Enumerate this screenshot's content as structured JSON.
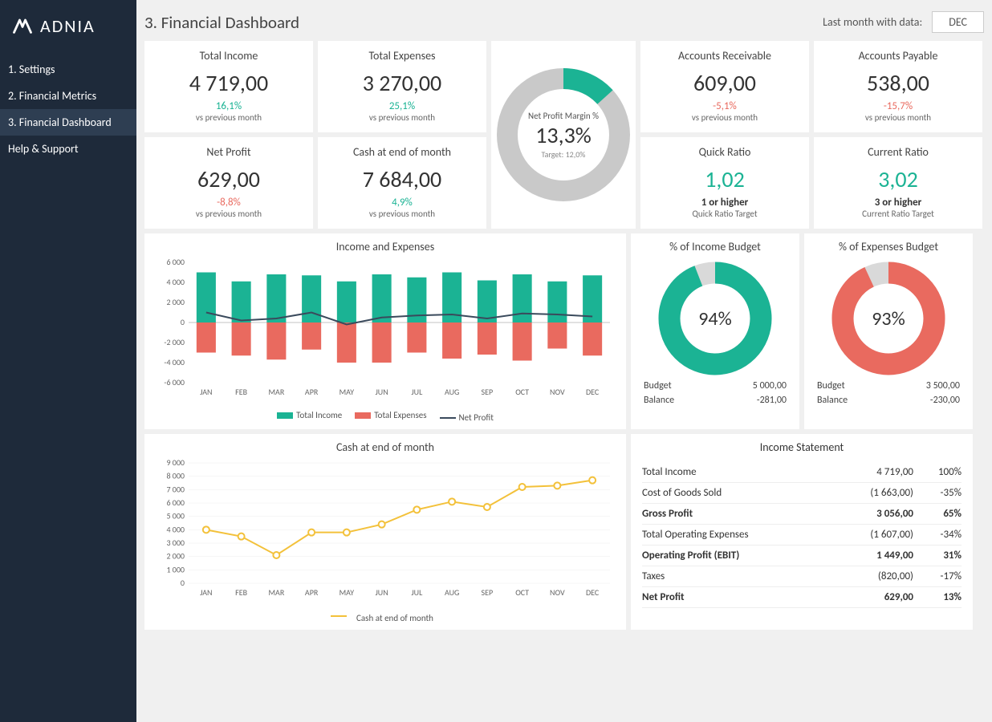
{
  "brand": "ADNIA",
  "page_title": "3. Financial Dashboard",
  "month_label": "Last month with data:",
  "month_value": "DEC",
  "nav": [
    {
      "label": "1. Settings",
      "active": false
    },
    {
      "label": "2. Financial Metrics",
      "active": false
    },
    {
      "label": "3. Financial Dashboard",
      "active": true
    },
    {
      "label": "Help & Support",
      "active": false
    }
  ],
  "colors": {
    "teal": "#1bb394",
    "red": "#e96a5f",
    "grey": "#c9c9c9",
    "navy": "#3a4a5c",
    "yellow": "#f3c13a",
    "bg": "#f0f0f0",
    "card": "#ffffff",
    "sidebar": "#1e2a3a"
  },
  "kpis_top": [
    {
      "title": "Total Income",
      "value": "4 719,00",
      "change": "16,1%",
      "change_cls": "pos",
      "sub": "vs previous month"
    },
    {
      "title": "Total Expenses",
      "value": "3 270,00",
      "change": "25,1%",
      "change_cls": "pos",
      "sub": "vs previous month"
    }
  ],
  "kpis_right_top": [
    {
      "title": "Accounts Receivable",
      "value": "609,00",
      "change": "-5,1%",
      "change_cls": "neg",
      "sub": "vs previous month"
    },
    {
      "title": "Accounts Payable",
      "value": "538,00",
      "change": "-15,7%",
      "change_cls": "neg",
      "sub": "vs previous month"
    }
  ],
  "kpis_bottom": [
    {
      "title": "Net Profit",
      "value": "629,00",
      "change": "-8,8%",
      "change_cls": "neg",
      "sub": "vs previous month"
    },
    {
      "title": "Cash at end of month",
      "value": "7 684,00",
      "change": "4,9%",
      "change_cls": "pos",
      "sub": "vs previous month"
    }
  ],
  "kpis_right_bottom": [
    {
      "title": "Quick Ratio",
      "value": "1,02",
      "value_cls": "pos",
      "change": "1 or higher",
      "change_cls": "",
      "sub": "Quick Ratio Target"
    },
    {
      "title": "Current Ratio",
      "value": "3,02",
      "value_cls": "pos",
      "change": "3 or higher",
      "change_cls": "",
      "sub": "Current Ratio Target"
    }
  ],
  "margin_donut": {
    "label": "Net Profit Margin %",
    "value": "13,3%",
    "target": "Target:  12,0%",
    "pct": 13.3,
    "fill": "#1bb394",
    "track": "#c9c9c9",
    "stroke_width": 26
  },
  "income_expense_chart": {
    "title": "Income and Expenses",
    "months": [
      "JAN",
      "FEB",
      "MAR",
      "APR",
      "MAY",
      "JUN",
      "JUL",
      "AUG",
      "SEP",
      "OCT",
      "NOV",
      "DEC"
    ],
    "income": [
      5000,
      4100,
      4800,
      4700,
      4100,
      4800,
      4500,
      5000,
      4200,
      4800,
      4100,
      4700
    ],
    "expenses": [
      3000,
      3300,
      3700,
      2700,
      4000,
      4000,
      3000,
      3600,
      3200,
      3800,
      2600,
      3300
    ],
    "net": [
      1000,
      200,
      400,
      1000,
      -200,
      500,
      700,
      800,
      400,
      900,
      800,
      600
    ],
    "ymin": -6000,
    "ymax": 6000,
    "ystep": 2000,
    "income_color": "#1bb394",
    "expense_color": "#e96a5f",
    "net_color": "#3a4a5c",
    "legend": [
      "Total Income",
      "Total Expenses",
      "Net Profit"
    ]
  },
  "budget_income": {
    "title": "% of Income Budget",
    "pct": 94,
    "color": "#1bb394",
    "track": "#d9d9d9",
    "budget_label": "Budget",
    "budget_val": "5 000,00",
    "balance_label": "Balance",
    "balance_val": "-281,00"
  },
  "budget_expense": {
    "title": "% of Expenses Budget",
    "pct": 93,
    "color": "#e96a5f",
    "track": "#d9d9d9",
    "budget_label": "Budget",
    "budget_val": "3 500,00",
    "balance_label": "Balance",
    "balance_val": "-230,00"
  },
  "cash_chart": {
    "title": "Cash at end of month",
    "months": [
      "JAN",
      "FEB",
      "MAR",
      "APR",
      "MAY",
      "JUN",
      "JUL",
      "AUG",
      "SEP",
      "OCT",
      "NOV",
      "DEC"
    ],
    "values": [
      4000,
      3500,
      2100,
      3800,
      3800,
      4400,
      5500,
      6100,
      5700,
      7200,
      7300,
      7700
    ],
    "ymin": 0,
    "ymax": 9000,
    "ystep": 1000,
    "line_color": "#f3c13a",
    "legend": "Cash at end of month"
  },
  "income_statement": {
    "title": "Income Statement",
    "rows": [
      {
        "label": "Total Income",
        "val": "4 719,00",
        "pct": "100%",
        "bold": false
      },
      {
        "label": "Cost of Goods Sold",
        "val": "(1 663,00)",
        "pct": "-35%",
        "bold": false
      },
      {
        "label": "Gross Profit",
        "val": "3 056,00",
        "pct": "65%",
        "bold": true
      },
      {
        "label": "Total Operating Expenses",
        "val": "(1 607,00)",
        "pct": "-34%",
        "bold": false
      },
      {
        "label": "Operating Profit (EBIT)",
        "val": "1 449,00",
        "pct": "31%",
        "bold": true
      },
      {
        "label": "Taxes",
        "val": "(820,00)",
        "pct": "-17%",
        "bold": false
      },
      {
        "label": "Net Profit",
        "val": "629,00",
        "pct": "13%",
        "bold": true
      }
    ]
  }
}
